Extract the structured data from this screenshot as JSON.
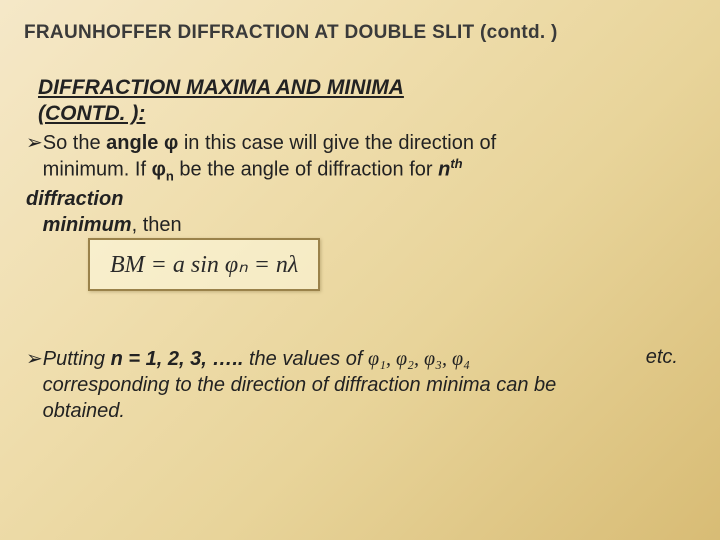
{
  "title": "FRAUNHOFFER  DIFFRACTION AT DOUBLE SLIT  (contd. )",
  "subtitle_line1": "DIFFRACTION MAXIMA AND MINIMA",
  "subtitle_line2": "(CONTD. ):",
  "bullet_glyph": "➢",
  "p1_a": "So the ",
  "p1_b": "angle φ",
  "p1_c": " in this case will give the direction of",
  "p1_d": "minimum. If  ",
  "p1_e": "φ",
  "p1_f": "n",
  "p1_g": " be the angle of diffraction for ",
  "p1_h": "n",
  "p1_i": "th",
  "p1_j": "diffraction",
  "p1_k": "minimum",
  "p1_l": ", then",
  "formula": "BM = a sin φₙ = nλ",
  "p2_a": "Putting ",
  "p2_b": "n = 1, 2, 3, ….. ",
  "p2_c": "the values of ",
  "phi_list": "φ₁, φ₂, φ₃, φ₄",
  "p2_e": "etc.",
  "p2_f": "corresponding to the direction of diffraction minima can be",
  "p2_g": "obtained."
}
